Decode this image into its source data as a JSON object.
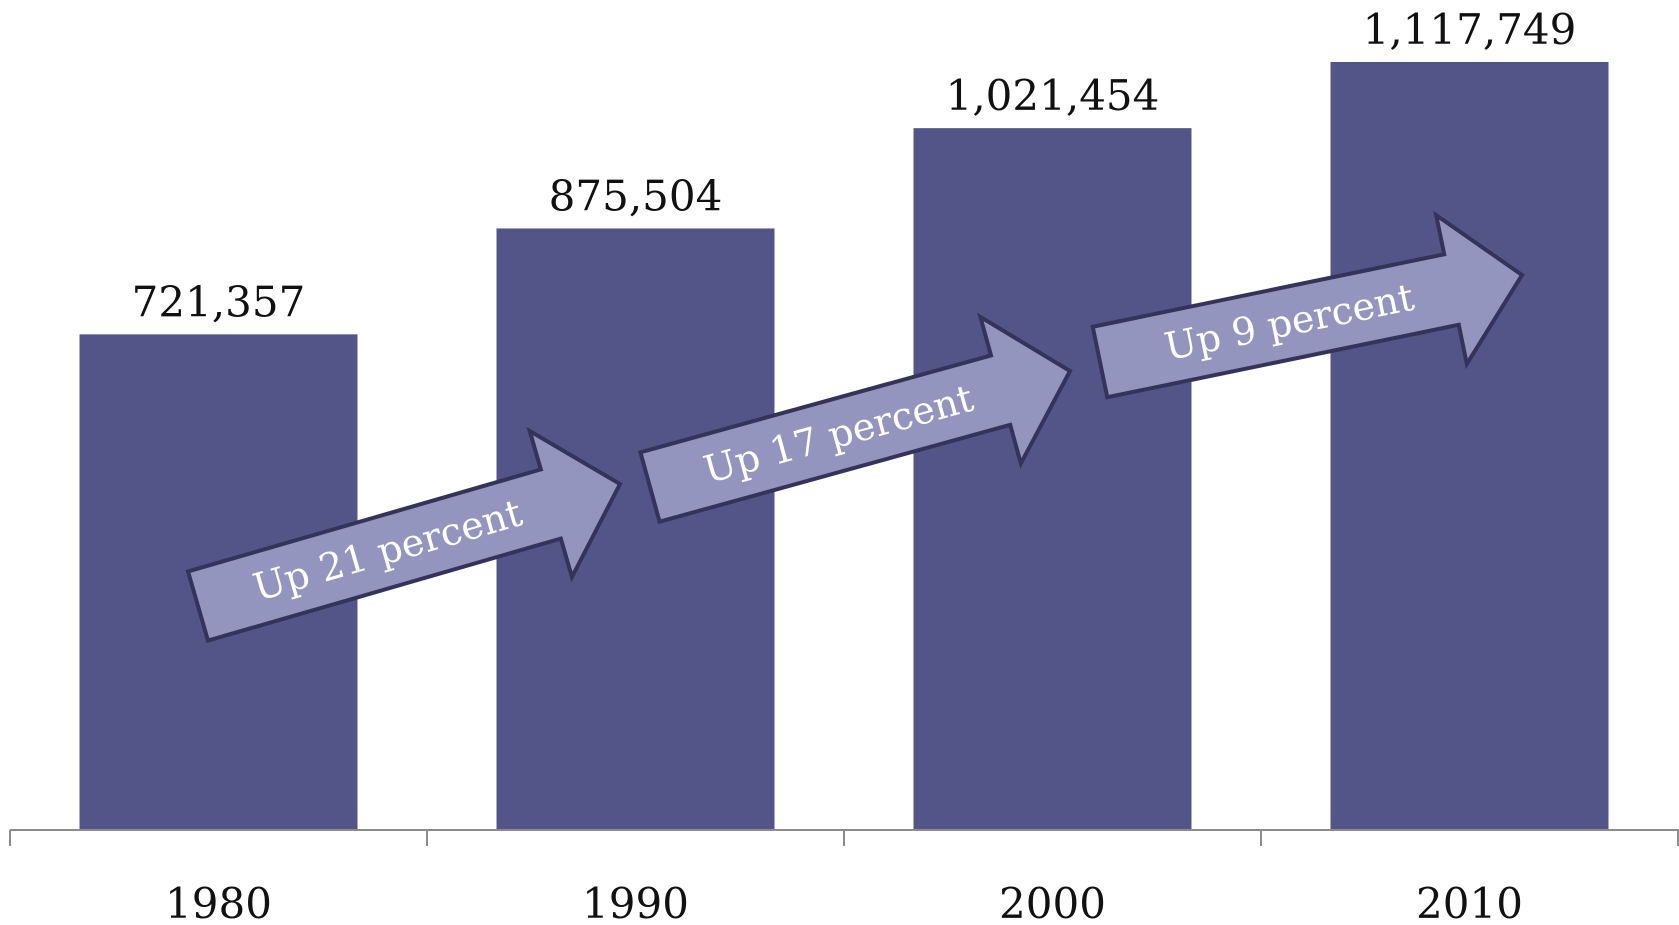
{
  "chart_data": {
    "type": "bar",
    "categories": [
      "1980",
      "1990",
      "2000",
      "2010"
    ],
    "values": [
      721357,
      875504,
      1021454,
      1117749
    ],
    "value_labels": [
      "721,357",
      "875,504",
      "1,021,454",
      "1,117,749"
    ],
    "title": "",
    "xlabel": "",
    "ylabel": "",
    "ylim": [
      0,
      1117749
    ],
    "grid": false,
    "legend": "none",
    "annotations": [
      {
        "text": "Up 21 percent",
        "from": "1980",
        "to": "1990"
      },
      {
        "text": "Up 17 percent",
        "from": "1990",
        "to": "2000"
      },
      {
        "text": "Up 9 percent",
        "from": "2000",
        "to": "2010"
      }
    ]
  },
  "colors": {
    "bar": "#535487",
    "arrow_fill": "#9495bf",
    "arrow_stroke": "#34345a",
    "axis": "#8c8c8c"
  }
}
